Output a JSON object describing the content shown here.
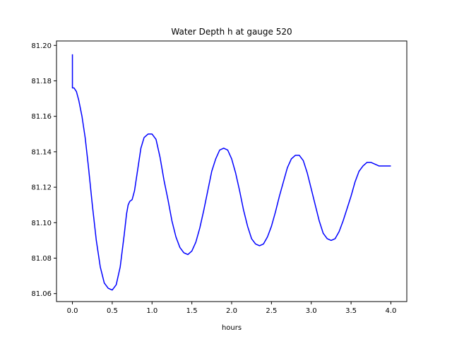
{
  "chart_data": {
    "type": "line",
    "title": "Water Depth h at gauge 520",
    "xlabel": "hours",
    "ylabel": "",
    "xlim": [
      -0.2,
      4.2
    ],
    "ylim": [
      81.0555,
      81.2025
    ],
    "xticks": [
      0.0,
      0.5,
      1.0,
      1.5,
      2.0,
      2.5,
      3.0,
      3.5,
      4.0
    ],
    "xtick_labels": [
      "0.0",
      "0.5",
      "1.0",
      "1.5",
      "2.0",
      "2.5",
      "3.0",
      "3.5",
      "4.0"
    ],
    "yticks": [
      81.06,
      81.08,
      81.1,
      81.12,
      81.14,
      81.16,
      81.18,
      81.2
    ],
    "ytick_labels": [
      "81.06",
      "81.08",
      "81.10",
      "81.12",
      "81.14",
      "81.16",
      "81.18",
      "81.20"
    ],
    "grid": false,
    "series": [
      {
        "color": "#0000ff",
        "x": [
          0.0,
          0.0,
          0.02,
          0.05,
          0.08,
          0.12,
          0.16,
          0.2,
          0.25,
          0.3,
          0.35,
          0.4,
          0.45,
          0.5,
          0.55,
          0.6,
          0.65,
          0.68,
          0.7,
          0.72,
          0.75,
          0.78,
          0.82,
          0.86,
          0.9,
          0.95,
          1.0,
          1.05,
          1.1,
          1.15,
          1.2,
          1.25,
          1.3,
          1.35,
          1.4,
          1.45,
          1.5,
          1.55,
          1.6,
          1.65,
          1.7,
          1.75,
          1.8,
          1.85,
          1.9,
          1.95,
          2.0,
          2.05,
          2.1,
          2.15,
          2.2,
          2.25,
          2.3,
          2.35,
          2.4,
          2.45,
          2.5,
          2.55,
          2.6,
          2.65,
          2.7,
          2.75,
          2.8,
          2.85,
          2.9,
          2.95,
          3.0,
          3.05,
          3.1,
          3.15,
          3.2,
          3.25,
          3.3,
          3.35,
          3.4,
          3.45,
          3.5,
          3.55,
          3.6,
          3.65,
          3.7,
          3.75,
          3.8,
          3.85,
          3.9,
          3.95,
          4.0
        ],
        "y": [
          81.195,
          81.176,
          81.176,
          81.174,
          81.169,
          81.16,
          81.148,
          81.132,
          81.11,
          81.09,
          81.075,
          81.066,
          81.063,
          81.062,
          81.065,
          81.075,
          81.093,
          81.105,
          81.11,
          81.112,
          81.113,
          81.118,
          81.13,
          81.142,
          81.148,
          81.15,
          81.15,
          81.147,
          81.137,
          81.124,
          81.113,
          81.101,
          81.092,
          81.086,
          81.083,
          81.082,
          81.084,
          81.089,
          81.097,
          81.107,
          81.118,
          81.129,
          81.136,
          81.141,
          81.142,
          81.141,
          81.136,
          81.128,
          81.118,
          81.107,
          81.098,
          81.091,
          81.088,
          81.087,
          81.088,
          81.092,
          81.098,
          81.106,
          81.115,
          81.123,
          81.131,
          81.136,
          81.138,
          81.138,
          81.135,
          81.128,
          81.119,
          81.11,
          81.101,
          81.094,
          81.091,
          81.09,
          81.091,
          81.095,
          81.101,
          81.108,
          81.115,
          81.123,
          81.129,
          81.132,
          81.134,
          81.134,
          81.133,
          81.132,
          81.132,
          81.132,
          81.132
        ]
      }
    ]
  }
}
